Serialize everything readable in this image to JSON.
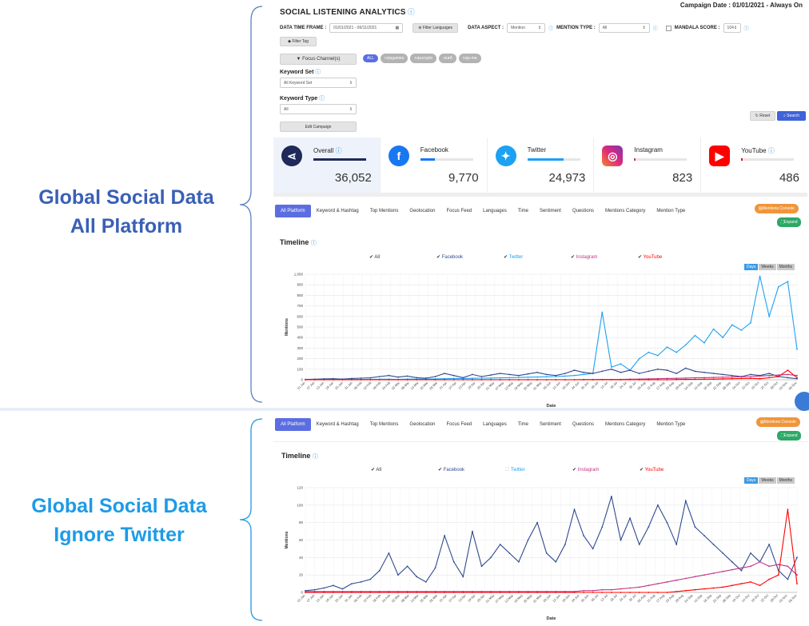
{
  "callouts": {
    "all_line1": "Global Social Data",
    "all_line2": "All Platform",
    "ignore_line1": "Global Social Data",
    "ignore_line2": "Ignore Twitter"
  },
  "header": {
    "title": "SOCIAL LISTENING ANALYTICS",
    "campaign_date": "Campaign Date : 01/01/2021 - Always On"
  },
  "filters": {
    "data_time_frame_label": "DATA TIME FRAME :",
    "data_time_frame_value": "01/01/2021 - 06/11/2021",
    "filter_languages": "Filter Languages",
    "data_aspect_label": "DATA ASPECT :",
    "data_aspect_value": "Mention",
    "mention_type_label": "MENTION TYPE :",
    "mention_type_value": "All",
    "mandala_score_label": "MANDALA SCORE :",
    "mandala_score_value": "104",
    "filter_tag": "Filter Tag",
    "focus_channel": "Focus Channel(s)",
    "channel_chips": [
      "ALL",
      "กลุ่มgames",
      "กลุ่มcrypto",
      "เทสท์",
      "กลุ่ม-me"
    ],
    "keyword_set_label": "Keyword Set",
    "keyword_set_value": "All Keyword Set",
    "keyword_type_label": "Keyword Type",
    "keyword_type_value": "All",
    "edit_campaign": "Edit Campaign",
    "reset": "Reset",
    "search": "Search"
  },
  "platform_cards": [
    {
      "name": "Overall",
      "value": "36,052",
      "share": 1.0,
      "color": "#1f2a5a"
    },
    {
      "name": "Facebook",
      "value": "9,770",
      "share": 0.27,
      "color": "#1877f2"
    },
    {
      "name": "Twitter",
      "value": "24,973",
      "share": 0.69,
      "color": "#1da1f2"
    },
    {
      "name": "Instagram",
      "value": "823",
      "share": 0.03,
      "color": "#c13584"
    },
    {
      "name": "YouTube",
      "value": "486",
      "share": 0.02,
      "color": "#ff0000"
    }
  ],
  "tabs": [
    "All Platform",
    "Keyword & Hashtag",
    "Top Mentions",
    "Geolocation",
    "Focus Feed",
    "Languages",
    "Time",
    "Sentiment",
    "Questions",
    "Mentions Category",
    "Mention Type"
  ],
  "actions": {
    "mentions_console": "Mentions Console",
    "expand": "Expand"
  },
  "timeline": {
    "title": "Timeline",
    "periods": [
      "Days",
      "Weeks",
      "Months"
    ],
    "legend_top": [
      {
        "label": "All",
        "checked": true,
        "color": "#333333"
      },
      {
        "label": "Facebook",
        "checked": true,
        "color": "#2e4a8f"
      },
      {
        "label": "Twitter",
        "checked": true,
        "color": "#1da1f2"
      },
      {
        "label": "Instagram",
        "checked": true,
        "color": "#c13584"
      },
      {
        "label": "YouTube",
        "checked": true,
        "color": "#ff0000"
      }
    ],
    "legend_bottom": [
      {
        "label": "All",
        "checked": true,
        "color": "#333333"
      },
      {
        "label": "Facebook",
        "checked": true,
        "color": "#2e4a8f"
      },
      {
        "label": "Twitter",
        "checked": false,
        "color": "#1da1f2"
      },
      {
        "label": "Instagram",
        "checked": true,
        "color": "#c13584"
      },
      {
        "label": "YouTube",
        "checked": true,
        "color": "#ff0000"
      }
    ]
  },
  "chart_data": [
    {
      "type": "line",
      "xlabel": "Date",
      "ylabel": "Mentions",
      "ylim": [
        0,
        1000
      ],
      "yticks": [
        "0",
        "100",
        "200",
        "300",
        "400",
        "500",
        "600",
        "700",
        "800",
        "900",
        "1,000"
      ],
      "x_ticks": [
        "01 Jan",
        "07 Jan",
        "13 Jan",
        "19 Jan",
        "25 Jan",
        "31 Jan",
        "06 Feb",
        "12 Feb",
        "18 Feb",
        "24 Feb",
        "02 Mar",
        "08 Mar",
        "14 Mar",
        "20 Mar",
        "26 Mar",
        "01 Apr",
        "07 Apr",
        "13 Apr",
        "19 Apr",
        "25 Apr",
        "01 May",
        "07 May",
        "13 May",
        "19 May",
        "25 May",
        "31 May",
        "06 Jun",
        "12 Jun",
        "18 Jun",
        "24 Jun",
        "30 Jun",
        "06 Jul",
        "12 Jul",
        "18 Jul",
        "24 Jul",
        "30 Jul",
        "05 Aug",
        "11 Aug",
        "17 Aug",
        "23 Aug",
        "29 Aug",
        "04 Sep",
        "10 Sep",
        "16 Sep",
        "22 Sep",
        "28 Sep",
        "04 Oct",
        "10 Oct",
        "16 Oct",
        "22 Oct",
        "28 Oct",
        "03 Nov",
        "06 Nov"
      ],
      "series": [
        {
          "name": "Twitter",
          "color": "#1da1f2",
          "values": [
            2,
            2,
            3,
            3,
            2,
            3,
            4,
            4,
            5,
            5,
            4,
            6,
            6,
            7,
            8,
            10,
            12,
            12,
            14,
            15,
            16,
            18,
            20,
            22,
            24,
            26,
            28,
            30,
            35,
            40,
            50,
            60,
            640,
            120,
            150,
            90,
            200,
            260,
            230,
            310,
            260,
            330,
            420,
            350,
            480,
            400,
            520,
            470,
            540,
            980,
            600,
            880,
            930,
            290
          ]
        },
        {
          "name": "Facebook",
          "color": "#2e4a8f",
          "values": [
            3,
            5,
            8,
            10,
            6,
            12,
            15,
            18,
            30,
            40,
            25,
            35,
            20,
            15,
            30,
            60,
            40,
            20,
            50,
            30,
            45,
            60,
            50,
            40,
            55,
            70,
            50,
            40,
            60,
            90,
            70,
            60,
            80,
            100,
            70,
            90,
            60,
            80,
            100,
            90,
            60,
            110,
            80,
            70,
            60,
            50,
            40,
            30,
            50,
            40,
            60,
            30,
            20,
            10
          ]
        },
        {
          "name": "Instagram",
          "color": "#c13584",
          "values": [
            1,
            1,
            1,
            1,
            1,
            1,
            1,
            1,
            1,
            1,
            1,
            1,
            1,
            1,
            1,
            1,
            1,
            1,
            1,
            1,
            1,
            1,
            1,
            1,
            1,
            1,
            1,
            1,
            1,
            1,
            2,
            2,
            3,
            3,
            4,
            5,
            6,
            8,
            10,
            12,
            14,
            16,
            18,
            20,
            22,
            24,
            26,
            28,
            30,
            35,
            40,
            45,
            50,
            40
          ]
        },
        {
          "name": "YouTube",
          "color": "#ff0000",
          "values": [
            0,
            0,
            0,
            0,
            0,
            0,
            0,
            0,
            0,
            0,
            0,
            0,
            0,
            0,
            0,
            0,
            0,
            0,
            0,
            0,
            0,
            0,
            0,
            0,
            0,
            0,
            0,
            0,
            0,
            0,
            0,
            0,
            0,
            0,
            0,
            0,
            0,
            0,
            0,
            0,
            2,
            3,
            4,
            5,
            6,
            8,
            10,
            12,
            14,
            10,
            20,
            30,
            90,
            20
          ]
        }
      ]
    },
    {
      "type": "line",
      "xlabel": "Date",
      "ylabel": "Mentions",
      "ylim": [
        0,
        120
      ],
      "yticks": [
        "0",
        "20",
        "40",
        "60",
        "80",
        "100",
        "120"
      ],
      "x_ticks": [
        "01 Jan",
        "07 Jan",
        "13 Jan",
        "19 Jan",
        "25 Jan",
        "31 Jan",
        "06 Feb",
        "12 Feb",
        "18 Feb",
        "24 Feb",
        "02 Mar",
        "08 Mar",
        "14 Mar",
        "20 Mar",
        "26 Mar",
        "01 Apr",
        "07 Apr",
        "13 Apr",
        "19 Apr",
        "25 Apr",
        "01 May",
        "07 May",
        "13 May",
        "19 May",
        "25 May",
        "31 May",
        "06 Jun",
        "12 Jun",
        "18 Jun",
        "24 Jun",
        "30 Jun",
        "06 Jul",
        "12 Jul",
        "18 Jul",
        "24 Jul",
        "30 Jul",
        "05 Aug",
        "11 Aug",
        "17 Aug",
        "23 Aug",
        "29 Aug",
        "04 Sep",
        "10 Sep",
        "16 Sep",
        "22 Sep",
        "28 Sep",
        "04 Oct",
        "10 Oct",
        "16 Oct",
        "22 Oct",
        "28 Oct",
        "03 Nov",
        "06 Nov"
      ],
      "series": [
        {
          "name": "Facebook",
          "color": "#2e4a8f",
          "values": [
            2,
            3,
            5,
            8,
            4,
            10,
            12,
            15,
            25,
            45,
            20,
            30,
            18,
            12,
            28,
            65,
            35,
            18,
            70,
            30,
            40,
            55,
            45,
            35,
            60,
            80,
            45,
            35,
            55,
            95,
            65,
            50,
            75,
            110,
            60,
            85,
            55,
            75,
            100,
            80,
            55,
            105,
            75,
            65,
            55,
            45,
            35,
            25,
            45,
            35,
            55,
            25,
            15,
            40
          ]
        },
        {
          "name": "Instagram",
          "color": "#c13584",
          "values": [
            1,
            1,
            1,
            1,
            1,
            1,
            1,
            1,
            1,
            1,
            1,
            1,
            1,
            1,
            1,
            1,
            1,
            1,
            1,
            1,
            1,
            1,
            1,
            1,
            1,
            1,
            1,
            1,
            1,
            1,
            2,
            2,
            3,
            3,
            4,
            5,
            6,
            8,
            10,
            12,
            14,
            16,
            18,
            20,
            22,
            24,
            26,
            28,
            30,
            35,
            30,
            32,
            30,
            20
          ]
        },
        {
          "name": "YouTube",
          "color": "#ff0000",
          "values": [
            0,
            0,
            0,
            0,
            0,
            0,
            0,
            0,
            0,
            0,
            0,
            0,
            0,
            0,
            0,
            0,
            0,
            0,
            0,
            0,
            0,
            0,
            0,
            0,
            0,
            0,
            0,
            0,
            0,
            0,
            0,
            0,
            0,
            0,
            0,
            0,
            0,
            0,
            0,
            0,
            1,
            2,
            3,
            4,
            5,
            6,
            8,
            10,
            12,
            8,
            15,
            20,
            95,
            10
          ]
        }
      ]
    }
  ]
}
